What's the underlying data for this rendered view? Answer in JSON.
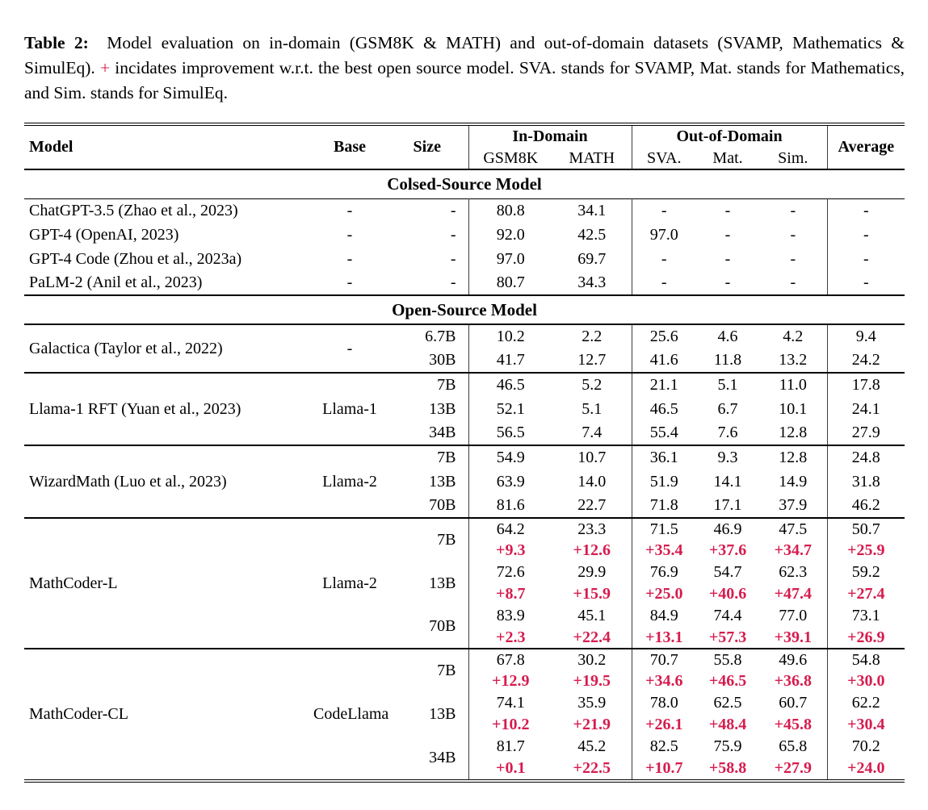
{
  "caption": {
    "label": "Table 2:",
    "text_before_plus": "Model evaluation on in-domain (GSM8K & MATH) and out-of-domain datasets (SVAMP, Mathematics & SimulEq).",
    "plus": "+",
    "text_after_plus": "incidates improvement w.r.t. the best open source model. SVA. stands for SVAMP, Mat. stands for Mathematics, and Sim. stands for SimulEq."
  },
  "colors": {
    "accent_red": "#d61c4e",
    "text": "#000000",
    "rule": "#000000",
    "vertical_rule": "#3c3c3c"
  },
  "table": {
    "header": {
      "model": "Model",
      "base": "Base",
      "size": "Size",
      "in_domain": "In-Domain",
      "out_of_domain": "Out-of-Domain",
      "average": "Average",
      "sub_columns": [
        "GSM8K",
        "MATH",
        "SVA.",
        "Mat.",
        "Sim."
      ]
    },
    "body": [
      {
        "kind": "section",
        "label": "Colsed-Source Model",
        "rule_top": "none"
      },
      {
        "kind": "block",
        "model": "ChatGPT-3.5 (Zhao et al., 2023)",
        "base": "-",
        "rule_top": "thin",
        "rows": [
          {
            "size": "-",
            "vals": [
              "80.8",
              "34.1",
              "-",
              "-",
              "-",
              "-"
            ]
          }
        ]
      },
      {
        "kind": "block",
        "model": "GPT-4 (OpenAI, 2023)",
        "base": "-",
        "rule_top": "none",
        "rows": [
          {
            "size": "-",
            "vals": [
              "92.0",
              "42.5",
              "97.0",
              "-",
              "-",
              "-"
            ]
          }
        ]
      },
      {
        "kind": "block",
        "model": "GPT-4 Code (Zhou et al., 2023a)",
        "base": "-",
        "rule_top": "none",
        "rows": [
          {
            "size": "-",
            "vals": [
              "97.0",
              "69.7",
              "-",
              "-",
              "-",
              "-"
            ]
          }
        ]
      },
      {
        "kind": "block",
        "model": "PaLM-2 (Anil et al., 2023)",
        "base": "-",
        "rule_top": "none",
        "rows": [
          {
            "size": "-",
            "vals": [
              "80.7",
              "34.3",
              "-",
              "-",
              "-",
              "-"
            ]
          }
        ]
      },
      {
        "kind": "section",
        "label": "Open-Source Model",
        "rule_top": "medium"
      },
      {
        "kind": "block",
        "model": "Galactica (Taylor et al., 2022)",
        "base": "-",
        "rule_top": "medium",
        "rows": [
          {
            "size": "6.7B",
            "vals": [
              "10.2",
              "2.2",
              "25.6",
              "4.6",
              "4.2",
              "9.4"
            ]
          },
          {
            "size": "30B",
            "vals": [
              "41.7",
              "12.7",
              "41.6",
              "11.8",
              "13.2",
              "24.2"
            ]
          }
        ]
      },
      {
        "kind": "block",
        "model": "Llama-1 RFT (Yuan et al., 2023)",
        "base": "Llama-1",
        "rule_top": "medium",
        "rows": [
          {
            "size": "7B",
            "vals": [
              "46.5",
              "5.2",
              "21.1",
              "5.1",
              "11.0",
              "17.8"
            ]
          },
          {
            "size": "13B",
            "vals": [
              "52.1",
              "5.1",
              "46.5",
              "6.7",
              "10.1",
              "24.1"
            ]
          },
          {
            "size": "34B",
            "vals": [
              "56.5",
              "7.4",
              "55.4",
              "7.6",
              "12.8",
              "27.9"
            ]
          }
        ]
      },
      {
        "kind": "block",
        "model": "WizardMath (Luo et al., 2023)",
        "base": "Llama-2",
        "rule_top": "medium",
        "rows": [
          {
            "size": "7B",
            "vals": [
              "54.9",
              "10.7",
              "36.1",
              "9.3",
              "12.8",
              "24.8"
            ]
          },
          {
            "size": "13B",
            "vals": [
              "63.9",
              "14.0",
              "51.9",
              "14.1",
              "14.9",
              "31.8"
            ]
          },
          {
            "size": "70B",
            "vals": [
              "81.6",
              "22.7",
              "71.8",
              "17.1",
              "37.9",
              "46.2"
            ]
          }
        ]
      },
      {
        "kind": "block",
        "model": "MathCoder-L",
        "base": "Llama-2",
        "rule_top": "medium",
        "rows": [
          {
            "size": "7B",
            "sizespan": 2,
            "vals": [
              "64.2",
              "23.3",
              "71.5",
              "46.9",
              "47.5",
              "50.7"
            ]
          },
          {
            "delta": true,
            "vals": [
              "+9.3",
              "+12.6",
              "+35.4",
              "+37.6",
              "+34.7",
              "+25.9"
            ]
          },
          {
            "size": "13B",
            "sizespan": 2,
            "vals": [
              "72.6",
              "29.9",
              "76.9",
              "54.7",
              "62.3",
              "59.2"
            ]
          },
          {
            "delta": true,
            "vals": [
              "+8.7",
              "+15.9",
              "+25.0",
              "+40.6",
              "+47.4",
              "+27.4"
            ]
          },
          {
            "size": "70B",
            "sizespan": 2,
            "vals": [
              "83.9",
              "45.1",
              "84.9",
              "74.4",
              "77.0",
              "73.1"
            ]
          },
          {
            "delta": true,
            "vals": [
              "+2.3",
              "+22.4",
              "+13.1",
              "+57.3",
              "+39.1",
              "+26.9"
            ]
          }
        ]
      },
      {
        "kind": "block",
        "model": "MathCoder-CL",
        "base": "CodeLlama",
        "rule_top": "medium",
        "rows": [
          {
            "size": "7B",
            "sizespan": 2,
            "vals": [
              "67.8",
              "30.2",
              "70.7",
              "55.8",
              "49.6",
              "54.8"
            ]
          },
          {
            "delta": true,
            "vals": [
              "+12.9",
              "+19.5",
              "+34.6",
              "+46.5",
              "+36.8",
              "+30.0"
            ]
          },
          {
            "size": "13B",
            "sizespan": 2,
            "vals": [
              "74.1",
              "35.9",
              "78.0",
              "62.5",
              "60.7",
              "62.2"
            ]
          },
          {
            "delta": true,
            "vals": [
              "+10.2",
              "+21.9",
              "+26.1",
              "+48.4",
              "+45.8",
              "+30.4"
            ]
          },
          {
            "size": "34B",
            "sizespan": 2,
            "vals": [
              "81.7",
              "45.2",
              "82.5",
              "75.9",
              "65.8",
              "70.2"
            ]
          },
          {
            "delta": true,
            "vals": [
              "+0.1",
              "+22.5",
              "+10.7",
              "+58.8",
              "+27.9",
              "+24.0"
            ]
          }
        ]
      }
    ]
  }
}
